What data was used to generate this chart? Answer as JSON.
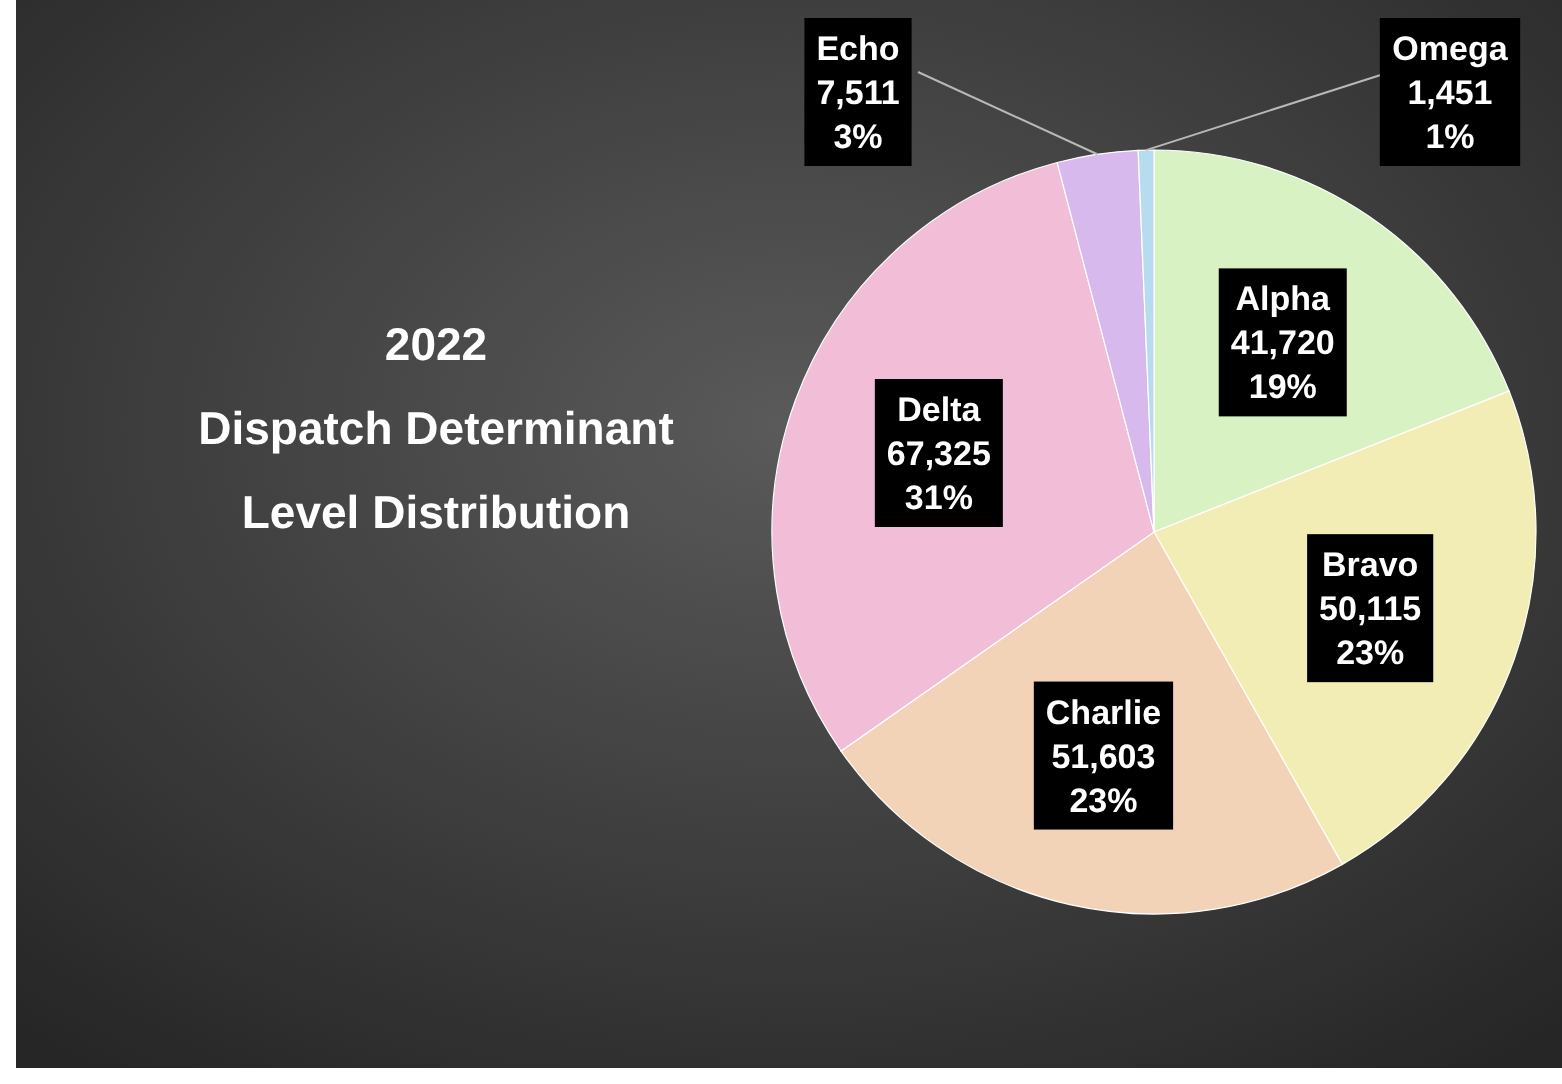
{
  "chart_data": {
    "type": "pie",
    "title": "2022\nDispatch Determinant\nLevel Distribution",
    "categories": [
      "Alpha",
      "Bravo",
      "Charlie",
      "Delta",
      "Echo",
      "Omega"
    ],
    "values": [
      41720,
      50115,
      51603,
      67325,
      7511,
      1451
    ],
    "colors": [
      "#d8f2c4",
      "#f2edb4",
      "#f2d3b8",
      "#f1bdd7",
      "#d7b9ee",
      "#b7dcef"
    ],
    "value_labels": [
      "41,720\n19%",
      "50,115\n23%",
      "51,603\n23%",
      "67,325\n31%",
      "7,511\n3%",
      "1,451\n1%"
    ]
  }
}
